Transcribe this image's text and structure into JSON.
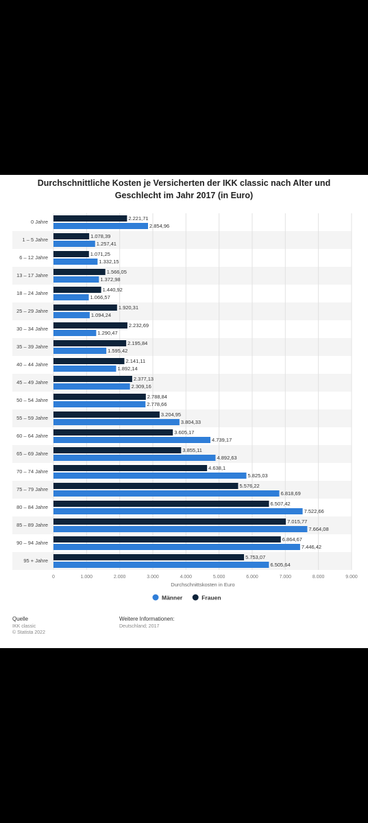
{
  "chart_data": {
    "type": "hbar",
    "title": "Durchschnittliche Kosten je Versicherten der IKK classic nach Alter und Geschlecht im Jahr 2017 (in Euro)",
    "x_label": "Durchschnittskosten in Euro",
    "categories": [
      "0 Jahre",
      "1 – 5 Jahre",
      "6 – 12 Jahre",
      "13 – 17 Jahre",
      "18 – 24 Jahre",
      "25 – 29 Jahre",
      "30 – 34 Jahre",
      "35 – 39 Jahre",
      "40 – 44 Jahre",
      "45 – 49 Jahre",
      "50 – 54 Jahre",
      "55 – 59 Jahre",
      "60 – 64 Jahre",
      "65 – 69 Jahre",
      "70 – 74 Jahre",
      "75 – 79 Jahre",
      "80 – 84 Jahre",
      "85 – 89 Jahre",
      "90 – 94 Jahre",
      "95 + Jahre"
    ],
    "series": [
      {
        "name": "Männer",
        "color": "#2f7ed8",
        "values": [
          2854.96,
          1257.41,
          1332.15,
          1372.98,
          1066.57,
          1094.24,
          1290.47,
          1595.42,
          1892.14,
          2309.16,
          2778.66,
          3804.33,
          4739.17,
          4892.63,
          5825.03,
          6818.69,
          7522.66,
          7664.08,
          7446.42,
          6505.64
        ],
        "value_labels": [
          "2.854,96",
          "1.257,41",
          "1.332,15",
          "1.372,98",
          "1.066,57",
          "1.094,24",
          "1.290,47",
          "1.595,42",
          "1.892,14",
          "2.309,16",
          "2.778,66",
          "3.804,33",
          "4.739,17",
          "4.892,63",
          "5.825,03",
          "6.818,69",
          "7.522,66",
          "7.664,08",
          "7.446,42",
          "6.505,64"
        ]
      },
      {
        "name": "Frauen",
        "color": "#0d233a",
        "values": [
          2221.71,
          1078.39,
          1071.25,
          1566.05,
          1440.92,
          1920.31,
          2232.69,
          2195.84,
          2141.11,
          2377.13,
          2788.84,
          3204.95,
          3605.17,
          3855.11,
          4638.1,
          5576.22,
          6507.42,
          7015.77,
          6864.67,
          5753.07
        ],
        "value_labels": [
          "2.221,71",
          "1.078,39",
          "1.071,25",
          "1.566,05",
          "1.440,92",
          "1.920,31",
          "2.232,69",
          "2.195,84",
          "2.141,11",
          "2.377,13",
          "2.788,84",
          "3.204,95",
          "3.605,17",
          "3.855,11",
          "4.638,1",
          "5.576,22",
          "6.507,42",
          "7.015,77",
          "6.864,67",
          "5.753,07"
        ]
      }
    ],
    "xlim": [
      0,
      9000
    ],
    "xticks": [
      0,
      {
        "value": 1000,
        "label": "1.000"
      },
      {
        "value": 2000,
        "label": "2.000"
      },
      {
        "value": 3000,
        "label": "3.000"
      },
      {
        "value": 4000,
        "label": "4.000"
      },
      {
        "value": 5000,
        "label": "5.000"
      },
      {
        "value": 6000,
        "label": "6.000"
      },
      {
        "value": 7000,
        "label": "7.000"
      },
      {
        "value": 8000,
        "label": "8.000"
      },
      {
        "value": 9000,
        "label": "9.000"
      }
    ],
    "grid": true,
    "legend": "bottom"
  },
  "footer": {
    "source_label": "Quelle",
    "source": "IKK classic",
    "copyright": "© Statista 2022",
    "info_label": "Weitere Informationen:",
    "info": "Deutschland; 2017"
  }
}
